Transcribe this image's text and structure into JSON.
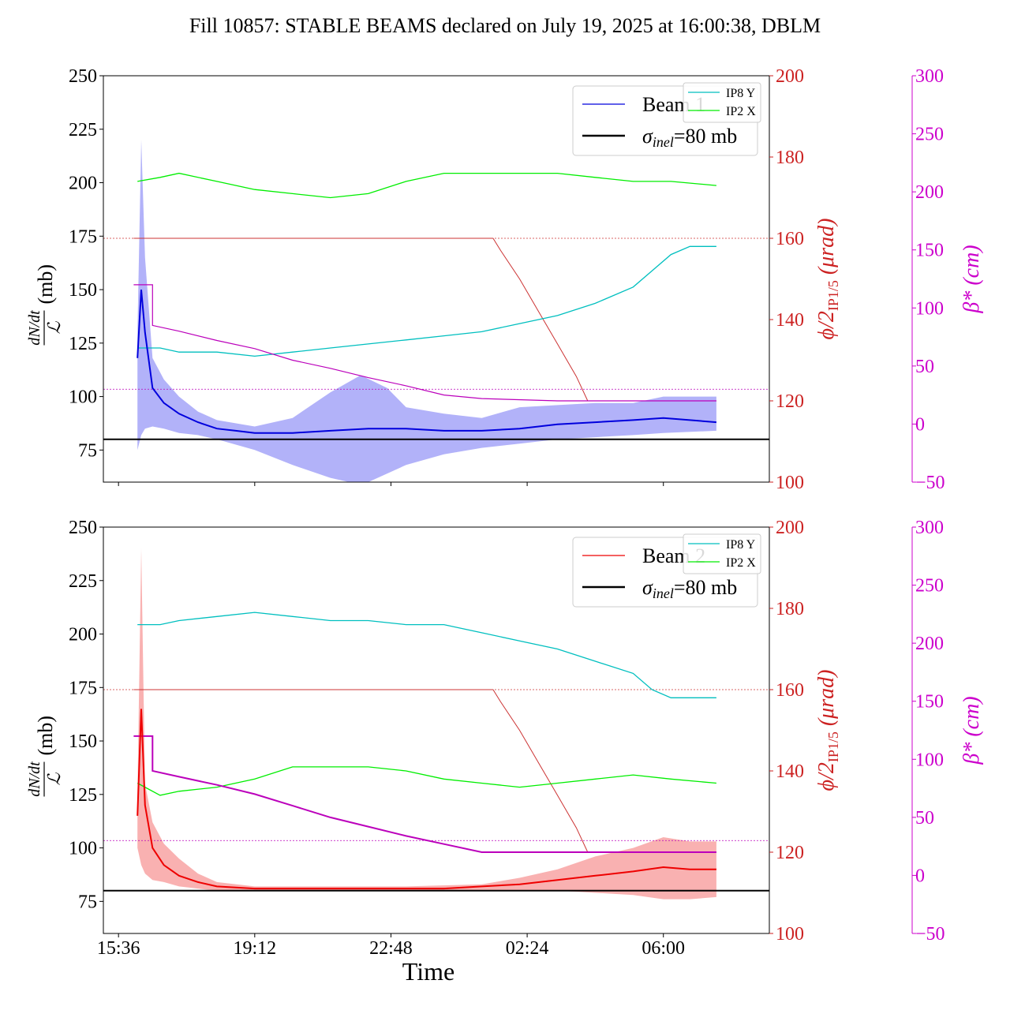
{
  "title": "Fill 10857: STABLE BEAMS declared on July 19, 2025 at 16:00:38, DBLM",
  "chart_data": {
    "type": "line",
    "x_axis": {
      "label": "Time",
      "tick_labels": [
        "15:36",
        "19:12",
        "22:48",
        "02:24",
        "06:00"
      ],
      "tick_hours": [
        0.4,
        4.0,
        7.6,
        11.2,
        14.8
      ]
    },
    "colors": {
      "beam1": "#0000dd",
      "beam1_band": "#aaaaf8",
      "beam2": "#ee0000",
      "beam2_band": "#f8a8a8",
      "ip8y": "#00bfbf",
      "ip2x": "#00ee00",
      "crossing": "#cc3333",
      "betastar": "#bb00bb",
      "sigma": "#000000",
      "crossing_axis": "#cc2222",
      "beta_axis": "#cc00cc"
    },
    "panels": [
      {
        "name": "Beam 1",
        "ylim": [
          60,
          250
        ],
        "y_ticks": [
          "75",
          "100",
          "125",
          "150",
          "175",
          "200",
          "225",
          "250"
        ],
        "ylabel_num": "dN/dt",
        "ylabel_den": "ℒ",
        "ylabel_unit": "(mb)",
        "right_ylim": [
          100,
          200
        ],
        "right_ticks": [
          "100",
          "120",
          "140",
          "160",
          "180",
          "200"
        ],
        "right_label": "ϕ/2",
        "right_label_sub": "IP1/5",
        "right_label_unit": "(μrad)",
        "beta_ylim": [
          -50,
          300
        ],
        "beta_ticks": [
          "−50",
          "0",
          "50",
          "100",
          "150",
          "200",
          "250",
          "300"
        ],
        "beta_label": "β* (cm)",
        "legend_entries": [
          "Beam 1",
          "σinel=80 mb"
        ],
        "legend_sigma_sym": "σ",
        "legend_sigma_sub": "inel",
        "legend_sigma_rest": "=80 mb",
        "small_legend": [
          "IP8 Y",
          "IP2 X"
        ],
        "sigma_inel": 80,
        "rate_mean": [
          [
            0.9,
            118
          ],
          [
            1.0,
            150
          ],
          [
            1.1,
            130
          ],
          [
            1.3,
            104
          ],
          [
            1.6,
            97
          ],
          [
            2.0,
            92
          ],
          [
            2.5,
            88
          ],
          [
            3.0,
            85
          ],
          [
            3.5,
            84
          ],
          [
            4.0,
            83
          ],
          [
            5.0,
            83
          ],
          [
            6.0,
            84
          ],
          [
            7.0,
            85
          ],
          [
            8.0,
            85
          ],
          [
            9.0,
            84
          ],
          [
            10.0,
            84
          ],
          [
            11.0,
            85
          ],
          [
            12.0,
            87
          ],
          [
            13.0,
            88
          ],
          [
            14.0,
            89
          ],
          [
            14.8,
            90
          ],
          [
            15.5,
            89
          ],
          [
            16.2,
            88
          ]
        ],
        "rate_band_upper": [
          [
            0.9,
            130
          ],
          [
            1.0,
            220
          ],
          [
            1.1,
            165
          ],
          [
            1.3,
            118
          ],
          [
            1.6,
            108
          ],
          [
            2.0,
            100
          ],
          [
            2.5,
            93
          ],
          [
            3.0,
            89
          ],
          [
            4.0,
            86
          ],
          [
            5.0,
            90
          ],
          [
            6.0,
            102
          ],
          [
            6.8,
            110
          ],
          [
            7.5,
            104
          ],
          [
            8.0,
            95
          ],
          [
            9.0,
            92
          ],
          [
            10.0,
            90
          ],
          [
            11.0,
            95
          ],
          [
            12.0,
            96
          ],
          [
            13.0,
            97
          ],
          [
            14.0,
            97
          ],
          [
            14.8,
            100
          ],
          [
            16.2,
            100
          ]
        ],
        "rate_band_lower": [
          [
            0.9,
            75
          ],
          [
            1.0,
            82
          ],
          [
            1.1,
            85
          ],
          [
            1.3,
            86
          ],
          [
            1.6,
            85
          ],
          [
            2.0,
            83
          ],
          [
            2.5,
            82
          ],
          [
            3.0,
            80
          ],
          [
            4.0,
            75
          ],
          [
            5.0,
            68
          ],
          [
            6.0,
            62
          ],
          [
            6.5,
            60
          ],
          [
            7.0,
            60
          ],
          [
            8.0,
            68
          ],
          [
            9.0,
            73
          ],
          [
            10.0,
            76
          ],
          [
            11.0,
            78
          ],
          [
            12.0,
            80
          ],
          [
            13.0,
            81
          ],
          [
            14.0,
            82
          ],
          [
            14.8,
            83
          ],
          [
            16.2,
            84
          ]
        ],
        "ip8y": [
          [
            0.9,
            133
          ],
          [
            1.5,
            133
          ],
          [
            2.0,
            132
          ],
          [
            3.0,
            132
          ],
          [
            4.0,
            131
          ],
          [
            5.0,
            132
          ],
          [
            6.0,
            133
          ],
          [
            7.0,
            134
          ],
          [
            8.0,
            135
          ],
          [
            9.0,
            136
          ],
          [
            10.0,
            137
          ],
          [
            11.0,
            139
          ],
          [
            12.0,
            141
          ],
          [
            13.0,
            144
          ],
          [
            14.0,
            148
          ],
          [
            14.5,
            152
          ],
          [
            15.0,
            156
          ],
          [
            15.5,
            158
          ],
          [
            16.2,
            158
          ]
        ],
        "ip2x": [
          [
            0.9,
            174
          ],
          [
            1.5,
            175
          ],
          [
            2.0,
            176
          ],
          [
            3.0,
            174
          ],
          [
            4.0,
            172
          ],
          [
            5.0,
            171
          ],
          [
            6.0,
            170
          ],
          [
            7.0,
            171
          ],
          [
            8.0,
            174
          ],
          [
            9.0,
            176
          ],
          [
            10.0,
            176
          ],
          [
            11.0,
            176
          ],
          [
            12.0,
            176
          ],
          [
            13.0,
            175
          ],
          [
            14.0,
            174
          ],
          [
            15.0,
            174
          ],
          [
            16.2,
            173
          ]
        ],
        "crossing": [
          [
            0.8,
            160
          ],
          [
            10.3,
            160
          ],
          [
            10.5,
            157
          ],
          [
            11.0,
            150
          ],
          [
            11.5,
            142
          ],
          [
            12.0,
            134
          ],
          [
            12.5,
            126
          ],
          [
            12.8,
            120
          ],
          [
            16.2,
            120
          ]
        ],
        "betastar": [
          [
            0.8,
            120
          ],
          [
            1.3,
            120
          ],
          [
            1.3,
            85
          ],
          [
            2.0,
            80
          ],
          [
            3.0,
            72
          ],
          [
            4.0,
            65
          ],
          [
            5.0,
            55
          ],
          [
            6.0,
            48
          ],
          [
            7.0,
            40
          ],
          [
            8.0,
            33
          ],
          [
            9.0,
            25
          ],
          [
            10.0,
            22
          ],
          [
            12.0,
            20
          ],
          [
            16.2,
            20
          ]
        ],
        "crossing_ref": 160,
        "beta_ref": 30
      },
      {
        "name": "Beam 2",
        "ylim": [
          60,
          250
        ],
        "y_ticks": [
          "75",
          "100",
          "125",
          "150",
          "175",
          "200",
          "225",
          "250"
        ],
        "ylabel_num": "dN/dt",
        "ylabel_den": "ℒ",
        "ylabel_unit": "(mb)",
        "right_ylim": [
          100,
          200
        ],
        "right_ticks": [
          "100",
          "120",
          "140",
          "160",
          "180",
          "200"
        ],
        "right_label": "ϕ/2",
        "right_label_sub": "IP1/5",
        "right_label_unit": "(μrad)",
        "beta_ylim": [
          -50,
          300
        ],
        "beta_ticks": [
          "−50",
          "0",
          "50",
          "100",
          "150",
          "200",
          "250",
          "300"
        ],
        "beta_label": "β* (cm)",
        "legend_entries": [
          "Beam 2",
          "σinel=80 mb"
        ],
        "legend_sigma_sym": "σ",
        "legend_sigma_sub": "inel",
        "legend_sigma_rest": "=80 mb",
        "small_legend": [
          "IP8 Y",
          "IP2 X"
        ],
        "sigma_inel": 80,
        "rate_mean": [
          [
            0.9,
            115
          ],
          [
            1.0,
            165
          ],
          [
            1.1,
            120
          ],
          [
            1.3,
            100
          ],
          [
            1.6,
            92
          ],
          [
            2.0,
            87
          ],
          [
            2.5,
            84
          ],
          [
            3.0,
            82
          ],
          [
            4.0,
            81
          ],
          [
            5.0,
            81
          ],
          [
            6.0,
            81
          ],
          [
            7.0,
            81
          ],
          [
            8.0,
            81
          ],
          [
            9.0,
            81
          ],
          [
            10.0,
            82
          ],
          [
            11.0,
            83
          ],
          [
            12.0,
            85
          ],
          [
            13.0,
            87
          ],
          [
            14.0,
            89
          ],
          [
            14.8,
            91
          ],
          [
            15.5,
            90
          ],
          [
            16.2,
            90
          ]
        ],
        "rate_band_upper": [
          [
            0.9,
            125
          ],
          [
            1.0,
            240
          ],
          [
            1.1,
            130
          ],
          [
            1.3,
            112
          ],
          [
            1.6,
            102
          ],
          [
            2.0,
            95
          ],
          [
            2.5,
            88
          ],
          [
            3.0,
            84
          ],
          [
            4.0,
            82
          ],
          [
            6.0,
            82
          ],
          [
            8.0,
            82
          ],
          [
            10.0,
            83
          ],
          [
            11.0,
            86
          ],
          [
            12.0,
            90
          ],
          [
            13.0,
            96
          ],
          [
            14.0,
            100
          ],
          [
            14.8,
            105
          ],
          [
            15.5,
            103
          ],
          [
            16.2,
            103
          ]
        ],
        "rate_band_lower": [
          [
            0.9,
            100
          ],
          [
            1.0,
            92
          ],
          [
            1.1,
            88
          ],
          [
            1.3,
            85
          ],
          [
            1.6,
            84
          ],
          [
            2.0,
            82
          ],
          [
            2.5,
            81
          ],
          [
            3.0,
            80
          ],
          [
            4.0,
            80
          ],
          [
            6.0,
            80
          ],
          [
            8.0,
            80
          ],
          [
            10.0,
            80
          ],
          [
            11.0,
            80
          ],
          [
            12.0,
            80
          ],
          [
            13.0,
            79
          ],
          [
            14.0,
            78
          ],
          [
            14.8,
            76
          ],
          [
            15.5,
            76
          ],
          [
            16.2,
            77
          ]
        ],
        "ip8y": [
          [
            0.9,
            176
          ],
          [
            1.5,
            176
          ],
          [
            2.0,
            177
          ],
          [
            3.0,
            178
          ],
          [
            4.0,
            179
          ],
          [
            5.0,
            178
          ],
          [
            6.0,
            177
          ],
          [
            7.0,
            177
          ],
          [
            8.0,
            176
          ],
          [
            9.0,
            176
          ],
          [
            10.0,
            174
          ],
          [
            11.0,
            172
          ],
          [
            12.0,
            170
          ],
          [
            13.0,
            167
          ],
          [
            14.0,
            164
          ],
          [
            14.5,
            160
          ],
          [
            15.0,
            158
          ],
          [
            15.5,
            158
          ],
          [
            16.2,
            158
          ]
        ],
        "ip2x": [
          [
            0.9,
            137
          ],
          [
            1.5,
            134
          ],
          [
            2.0,
            135
          ],
          [
            3.0,
            136
          ],
          [
            4.0,
            138
          ],
          [
            5.0,
            141
          ],
          [
            6.0,
            141
          ],
          [
            7.0,
            141
          ],
          [
            8.0,
            140
          ],
          [
            9.0,
            138
          ],
          [
            10.0,
            137
          ],
          [
            11.0,
            136
          ],
          [
            12.0,
            137
          ],
          [
            13.0,
            138
          ],
          [
            14.0,
            139
          ],
          [
            15.0,
            138
          ],
          [
            16.2,
            137
          ]
        ],
        "crossing": [
          [
            0.8,
            160
          ],
          [
            10.3,
            160
          ],
          [
            10.5,
            157
          ],
          [
            11.0,
            150
          ],
          [
            11.5,
            142
          ],
          [
            12.0,
            134
          ],
          [
            12.5,
            126
          ],
          [
            12.8,
            120
          ],
          [
            16.2,
            120
          ]
        ],
        "betastar": [
          [
            0.8,
            120
          ],
          [
            1.3,
            120
          ],
          [
            1.3,
            90
          ],
          [
            2.0,
            85
          ],
          [
            3.0,
            78
          ],
          [
            4.0,
            70
          ],
          [
            5.0,
            60
          ],
          [
            6.0,
            50
          ],
          [
            7.0,
            42
          ],
          [
            8.0,
            34
          ],
          [
            9.0,
            27
          ],
          [
            10.0,
            20
          ],
          [
            12.0,
            20
          ],
          [
            16.2,
            20
          ]
        ],
        "crossing_ref": 160,
        "beta_ref": 30
      }
    ]
  }
}
